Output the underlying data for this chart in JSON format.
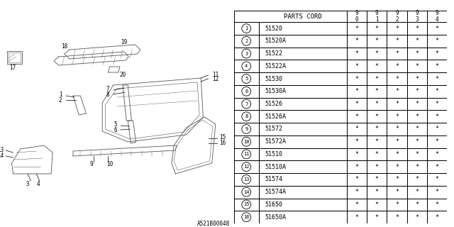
{
  "footer": "A521B00048",
  "table": {
    "header_col1": "PARTS CORD",
    "year_cols": [
      "9\n0",
      "9\n1",
      "9\n2",
      "9\n3",
      "9\n4"
    ],
    "rows": [
      {
        "num": 1,
        "part": "51520"
      },
      {
        "num": 2,
        "part": "51520A"
      },
      {
        "num": 3,
        "part": "51522"
      },
      {
        "num": 4,
        "part": "51522A"
      },
      {
        "num": 5,
        "part": "51530"
      },
      {
        "num": 6,
        "part": "51530A"
      },
      {
        "num": 7,
        "part": "51526"
      },
      {
        "num": 8,
        "part": "51526A"
      },
      {
        "num": 9,
        "part": "51572"
      },
      {
        "num": 10,
        "part": "51572A"
      },
      {
        "num": 11,
        "part": "51510"
      },
      {
        "num": 12,
        "part": "51510A"
      },
      {
        "num": 13,
        "part": "51574"
      },
      {
        "num": 14,
        "part": "51574A"
      },
      {
        "num": 15,
        "part": "51650"
      },
      {
        "num": 16,
        "part": "51650A"
      }
    ],
    "star": "*"
  },
  "bg_color": "#ffffff",
  "line_color": "#000000",
  "text_color": "#000000",
  "draw_line_color": "#555555",
  "font_size": 6.0,
  "header_font_size": 6.5
}
